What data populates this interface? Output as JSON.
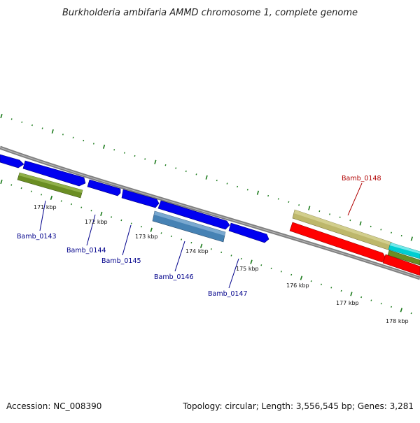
{
  "title": "Burkholderia ambifaria AMMD chromosome 1, complete genome",
  "footer": {
    "accession": "Accession: NC_008390",
    "summary": "Topology: circular; Length: 3,556,545 bp; Genes: 3,281"
  },
  "scale_labels": [
    "171 kbp",
    "172 kbp",
    "173 kbp",
    "174 kbp",
    "175 kbp",
    "176 kbp",
    "177 kbp",
    "178 kbp"
  ],
  "gene_labels": [
    {
      "text": "Bamb_0143",
      "color": "#00008b"
    },
    {
      "text": "Bamb_0144",
      "color": "#00008b"
    },
    {
      "text": "Bamb_0145",
      "color": "#00008b"
    },
    {
      "text": "Bamb_0146",
      "color": "#00008b"
    },
    {
      "text": "Bamb_0147",
      "color": "#00008b"
    },
    {
      "text": "Bamb_0148",
      "color": "#b00000"
    }
  ],
  "colors": {
    "backbone": "#7f7f7f",
    "ticks": "#1a7a1a",
    "forward_gene": "#0000f0",
    "olive_feature": "#6b8e23",
    "steel_feature": "#4682b4",
    "khaki_feature": "#bdb76b",
    "reverse_gene": "#ff0000",
    "cyan_feature": "#00ced1"
  }
}
